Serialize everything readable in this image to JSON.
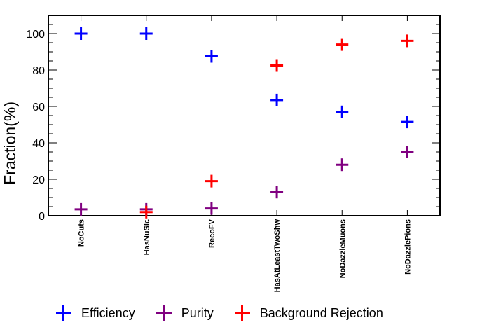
{
  "chart_data": {
    "type": "scatter",
    "marker": "plus",
    "categories": [
      "NoCuts",
      "HasNuSlc",
      "RecoFV",
      "HasAtLeastTwoShw",
      "NoDazzleMuons",
      "NoDazzlePions"
    ],
    "ylabel": "Fraction(%)",
    "xlabel": "",
    "ylim": [
      0,
      110
    ],
    "yticks": [
      0,
      20,
      40,
      60,
      80,
      100
    ],
    "grid": false,
    "legend_position": "bottom",
    "series": [
      {
        "name": "Efficiency",
        "color": "#0000ff",
        "values": [
          100,
          100,
          87.5,
          63.5,
          57,
          51.5
        ]
      },
      {
        "name": "Purity",
        "color": "#800080",
        "values": [
          3.5,
          3.5,
          4,
          13,
          28,
          35
        ]
      },
      {
        "name": "Background Rejection",
        "color": "#ff0000",
        "values": [
          null,
          2,
          19,
          82.5,
          94,
          96
        ]
      }
    ]
  }
}
